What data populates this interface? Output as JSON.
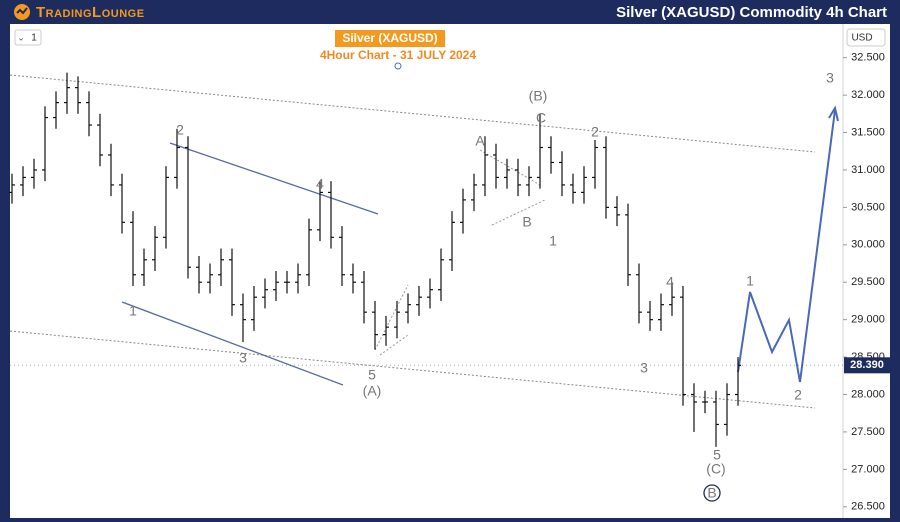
{
  "header": {
    "brand": "TradingLounge",
    "title": "Silver (XAGUSD) Commodity 4h Chart"
  },
  "toolbar": {
    "interval": "1",
    "currency": "USD"
  },
  "chart_data": {
    "type": "ohlc",
    "title": "Silver (XAGUSD)",
    "subtitle": "4Hour Chart - 31 JULY 2024",
    "color": "#111111",
    "categories": [
      null,
      null,
      null,
      null,
      null,
      null,
      null,
      null,
      null,
      null,
      null,
      null,
      null,
      null,
      null,
      null,
      null,
      null,
      null,
      null,
      null,
      null,
      null,
      null,
      null,
      null,
      null,
      null,
      null,
      null,
      null,
      null,
      null,
      null,
      null,
      null,
      null,
      null,
      null,
      null,
      null,
      null,
      null,
      null,
      null,
      null,
      null,
      null,
      null,
      null,
      null,
      null,
      null,
      null,
      null,
      null,
      null,
      null,
      null,
      null,
      null,
      null,
      null,
      null,
      null,
      null,
      null
    ],
    "open": [
      30.7,
      30.8,
      30.9,
      31.0,
      31.7,
      31.9,
      32.1,
      31.9,
      31.6,
      31.2,
      30.8,
      30.3,
      29.6,
      29.8,
      30.1,
      30.9,
      31.3,
      29.7,
      29.5,
      29.6,
      29.8,
      29.2,
      29.0,
      29.3,
      29.4,
      29.5,
      29.5,
      29.6,
      30.2,
      30.7,
      30.1,
      29.6,
      29.5,
      29.1,
      28.8,
      28.9,
      29.1,
      29.2,
      29.3,
      29.4,
      29.8,
      30.3,
      30.6,
      30.8,
      31.2,
      30.9,
      31.0,
      30.8,
      30.9,
      31.3,
      31.1,
      30.8,
      30.7,
      30.9,
      31.3,
      30.5,
      30.4,
      29.6,
      29.1,
      29.0,
      29.2,
      29.3,
      28.0,
      27.9,
      27.9,
      27.6,
      28.0
    ],
    "high": [
      30.95,
      31.05,
      31.15,
      31.85,
      32.05,
      32.3,
      32.25,
      32.05,
      31.75,
      31.35,
      30.95,
      30.45,
      29.95,
      30.25,
      31.05,
      31.55,
      31.45,
      29.85,
      29.75,
      29.95,
      29.95,
      29.35,
      29.45,
      29.55,
      29.65,
      29.65,
      29.75,
      30.35,
      30.85,
      30.85,
      30.25,
      29.75,
      29.65,
      29.25,
      29.05,
      29.25,
      29.35,
      29.45,
      29.55,
      29.95,
      30.45,
      30.75,
      30.95,
      31.45,
      31.35,
      31.15,
      31.15,
      31.05,
      31.75,
      31.45,
      31.25,
      30.95,
      31.05,
      31.4,
      31.45,
      30.65,
      30.55,
      29.75,
      29.25,
      29.35,
      29.5,
      29.45,
      28.15,
      28.05,
      28.05,
      28.15,
      28.5
    ],
    "low": [
      30.55,
      30.65,
      30.75,
      30.85,
      31.55,
      31.75,
      31.75,
      31.45,
      31.05,
      30.65,
      30.15,
      29.45,
      29.45,
      29.65,
      29.95,
      30.75,
      29.55,
      29.35,
      29.35,
      29.45,
      29.05,
      28.7,
      28.85,
      29.15,
      29.25,
      29.35,
      29.35,
      29.45,
      30.05,
      29.95,
      29.45,
      29.35,
      28.95,
      28.6,
      28.65,
      28.75,
      28.95,
      29.05,
      29.15,
      29.25,
      29.65,
      30.15,
      30.45,
      30.65,
      30.75,
      30.75,
      30.65,
      30.65,
      30.75,
      30.95,
      30.65,
      30.55,
      30.55,
      30.75,
      30.35,
      30.25,
      29.45,
      28.95,
      28.85,
      28.85,
      29.05,
      27.85,
      27.5,
      27.75,
      27.3,
      27.45,
      27.85
    ],
    "close": [
      30.8,
      30.9,
      31.0,
      31.7,
      31.9,
      32.1,
      31.9,
      31.6,
      31.2,
      30.8,
      30.3,
      29.6,
      29.8,
      30.1,
      30.9,
      31.3,
      29.7,
      29.5,
      29.6,
      29.8,
      29.2,
      29.0,
      29.3,
      29.4,
      29.5,
      29.5,
      29.6,
      30.2,
      30.7,
      30.1,
      29.6,
      29.5,
      29.1,
      28.8,
      28.9,
      29.1,
      29.2,
      29.3,
      29.4,
      29.8,
      30.3,
      30.6,
      30.8,
      31.2,
      30.9,
      31.0,
      30.8,
      30.9,
      31.3,
      31.1,
      30.8,
      30.7,
      30.9,
      31.3,
      30.5,
      30.4,
      29.6,
      29.1,
      29.0,
      29.2,
      29.3,
      28.0,
      27.9,
      27.9,
      27.6,
      28.0,
      28.39
    ],
    "last_price": {
      "value": 28.39,
      "label": "28.390"
    },
    "ylim": [
      26.35,
      32.95
    ],
    "yticks": [
      {
        "value": 26.5,
        "label": "26.500"
      },
      {
        "value": 27,
        "label": "27.000"
      },
      {
        "value": 27.5,
        "label": "27.500"
      },
      {
        "value": 28,
        "label": "28.000"
      },
      {
        "value": 28.5,
        "label": "28.500"
      },
      {
        "value": 29,
        "label": "29.000"
      },
      {
        "value": 29.5,
        "label": "29.500"
      },
      {
        "value": 30,
        "label": "30.000"
      },
      {
        "value": 30.5,
        "label": "30.500"
      },
      {
        "value": 31,
        "label": "31.000"
      },
      {
        "value": 31.5,
        "label": "31.500"
      },
      {
        "value": 32,
        "label": "32.000"
      },
      {
        "value": 32.5,
        "label": "32.500"
      }
    ],
    "grid": false,
    "annotations": [
      "2",
      "1",
      "3",
      "4",
      "5",
      "(A)",
      "A",
      "B",
      "C",
      "(B)",
      "1",
      "2",
      "4",
      "3",
      "5",
      "(C)",
      "B",
      "1",
      "2",
      "3"
    ]
  }
}
